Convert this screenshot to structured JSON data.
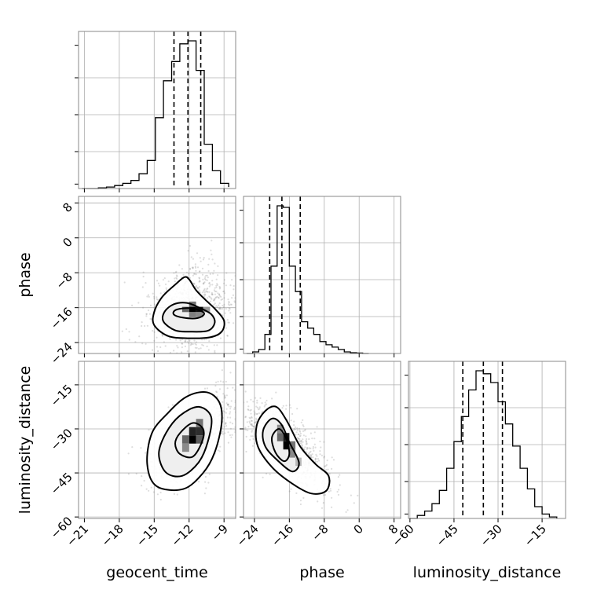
{
  "chart_data": {
    "type": "corner",
    "parameters": [
      "geocent_time",
      "phase",
      "luminosity_distance"
    ],
    "axis_labels": {
      "geocent_time": "geocent_time",
      "phase": "phase",
      "luminosity_distance": "luminosity_distance"
    },
    "ranges": {
      "geocent_time": [
        -21.5,
        -8.0
      ],
      "phase": [
        -26.5,
        9.5
      ],
      "luminosity_distance": [
        -60.5,
        -7.0
      ]
    },
    "ticks": {
      "geocent_time": [
        {
          "v": -21,
          "label": "−21"
        },
        {
          "v": -18,
          "label": "−18"
        },
        {
          "v": -15,
          "label": "−15"
        },
        {
          "v": -12,
          "label": "−12"
        },
        {
          "v": -9,
          "label": "−9"
        }
      ],
      "phase": [
        {
          "v": -24,
          "label": "−24"
        },
        {
          "v": -16,
          "label": "−16"
        },
        {
          "v": -8,
          "label": "−8"
        },
        {
          "v": 0,
          "label": "0"
        },
        {
          "v": 8,
          "label": "8"
        }
      ],
      "luminosity_distance": [
        {
          "v": -60,
          "label": "−60"
        },
        {
          "v": -45,
          "label": "−45"
        },
        {
          "v": -30,
          "label": "−30"
        },
        {
          "v": -15,
          "label": "−15"
        }
      ]
    },
    "histograms": {
      "geocent_time": {
        "edges": [
          -21.2,
          -20.5,
          -19.8,
          -19.1,
          -18.4,
          -17.7,
          -17.0,
          -16.3,
          -15.6,
          -14.9,
          -14.2,
          -13.5,
          -12.8,
          -12.1,
          -11.4,
          -10.7,
          -10.0,
          -9.3,
          -8.6
        ],
        "counts": [
          0.0,
          0.0,
          0.005,
          0.01,
          0.02,
          0.035,
          0.055,
          0.1,
          0.19,
          0.48,
          0.73,
          0.86,
          0.98,
          1.0,
          0.8,
          0.3,
          0.12,
          0.035,
          0.01
        ],
        "quantiles": [
          -13.3,
          -12.1,
          -11.0
        ]
      },
      "phase": {
        "edges": [
          -25.8,
          -24.4,
          -23.0,
          -21.6,
          -20.2,
          -18.8,
          -17.4,
          -16.0,
          -14.6,
          -13.2,
          -11.8,
          -10.4,
          -9.0,
          -7.6,
          -6.2,
          -4.8,
          -3.4,
          -2.0,
          -0.6,
          0.8,
          2.2
        ],
        "counts": [
          0.0,
          0.01,
          0.025,
          0.12,
          0.55,
          0.93,
          0.92,
          0.55,
          0.39,
          0.2,
          0.16,
          0.12,
          0.075,
          0.055,
          0.04,
          0.025,
          0.01,
          0.005,
          0.003,
          0.0,
          0.0
        ],
        "quantiles": [
          -20.5,
          -17.7,
          -13.5
        ]
      },
      "luminosity_distance": {
        "edges": [
          -60.0,
          -57.5,
          -55.0,
          -52.5,
          -50.0,
          -47.5,
          -45.0,
          -42.5,
          -40.0,
          -37.5,
          -35.0,
          -32.5,
          -30.0,
          -27.5,
          -25.0,
          -22.5,
          -20.0,
          -17.5,
          -15.0,
          -12.5,
          -10.0
        ],
        "counts": [
          0.0,
          0.02,
          0.05,
          0.1,
          0.19,
          0.34,
          0.52,
          0.69,
          0.87,
          1.0,
          0.98,
          0.92,
          0.79,
          0.64,
          0.49,
          0.34,
          0.2,
          0.08,
          0.03,
          0.01,
          0.0
        ],
        "quantiles": [
          -42.0,
          -35.0,
          -28.5
        ]
      }
    },
    "pairs": [
      {
        "x": "geocent_time",
        "y": "phase",
        "contours": [
          [
            [
              -13.8,
              -22.5
            ],
            [
              -12.0,
              -23.0
            ],
            [
              -10.2,
              -22.8
            ],
            [
              -9.2,
              -21.5
            ],
            [
              -9.0,
              -19.0
            ],
            [
              -9.7,
              -16.5
            ],
            [
              -10.6,
              -14.2
            ],
            [
              -11.4,
              -12.0
            ],
            [
              -12.0,
              -9.5
            ],
            [
              -12.4,
              -9.0
            ],
            [
              -13.1,
              -10.5
            ],
            [
              -14.3,
              -13.5
            ],
            [
              -15.0,
              -17.0
            ],
            [
              -15.0,
              -20.0
            ]
          ],
          [
            [
              -13.2,
              -21.2
            ],
            [
              -12.0,
              -21.5
            ],
            [
              -10.4,
              -21.3
            ],
            [
              -9.8,
              -19.5
            ],
            [
              -10.1,
              -17.5
            ],
            [
              -11.2,
              -15.9
            ],
            [
              -12.2,
              -14.9
            ],
            [
              -13.3,
              -15.2
            ],
            [
              -14.1,
              -16.9
            ],
            [
              -14.2,
              -19.2
            ]
          ],
          [
            [
              -12.5,
              -18.3
            ],
            [
              -11.3,
              -18.4
            ],
            [
              -10.7,
              -17.4
            ],
            [
              -11.3,
              -16.4
            ],
            [
              -12.3,
              -16.1
            ],
            [
              -13.2,
              -16.6
            ],
            [
              -13.3,
              -17.6
            ]
          ]
        ],
        "density_cells": [
          {
            "x": -12.0,
            "y": -17.0,
            "w": 0.6,
            "h": 1.2,
            "level": 1.0
          },
          {
            "x": -11.4,
            "y": -17.0,
            "w": 0.6,
            "h": 1.2,
            "level": 0.95
          },
          {
            "x": -12.6,
            "y": -17.0,
            "w": 0.6,
            "h": 1.2,
            "level": 0.55
          },
          {
            "x": -12.0,
            "y": -15.8,
            "w": 0.6,
            "h": 1.2,
            "level": 0.5
          },
          {
            "x": -12.0,
            "y": -18.2,
            "w": 0.6,
            "h": 1.2,
            "level": 0.45
          },
          {
            "x": -11.4,
            "y": -18.2,
            "w": 0.6,
            "h": 1.2,
            "level": 0.4
          },
          {
            "x": -10.8,
            "y": -17.0,
            "w": 0.6,
            "h": 1.2,
            "level": 0.35
          }
        ]
      },
      {
        "x": "geocent_time",
        "y": "luminosity_distance",
        "contours": [
          [
            [
              -14.8,
              -49.5
            ],
            [
              -12.5,
              -50.5
            ],
            [
              -10.8,
              -45.0
            ],
            [
              -9.8,
              -38.0
            ],
            [
              -9.2,
              -28.0
            ],
            [
              -9.4,
              -21.0
            ],
            [
              -10.5,
              -17.5
            ],
            [
              -12.2,
              -19.0
            ],
            [
              -13.8,
              -24.5
            ],
            [
              -15.2,
              -31.5
            ],
            [
              -15.6,
              -42.0
            ]
          ],
          [
            [
              -14.0,
              -44.8
            ],
            [
              -12.6,
              -46.0
            ],
            [
              -11.2,
              -41.5
            ],
            [
              -10.4,
              -34.5
            ],
            [
              -10.1,
              -26.0
            ],
            [
              -11.2,
              -22.5
            ],
            [
              -12.8,
              -25.5
            ],
            [
              -14.0,
              -31.5
            ],
            [
              -14.6,
              -38.5
            ]
          ],
          [
            [
              -12.8,
              -38.5
            ],
            [
              -11.7,
              -39.5
            ],
            [
              -10.9,
              -34.5
            ],
            [
              -10.8,
              -30.0
            ],
            [
              -11.7,
              -28.0
            ],
            [
              -12.8,
              -31.5
            ],
            [
              -13.2,
              -35.0
            ]
          ]
        ],
        "density_cells": [
          {
            "x": -12.0,
            "y": -35.0,
            "w": 0.6,
            "h": 2.8,
            "level": 1.0
          },
          {
            "x": -12.0,
            "y": -32.2,
            "w": 0.6,
            "h": 2.8,
            "level": 0.85
          },
          {
            "x": -11.4,
            "y": -32.2,
            "w": 0.6,
            "h": 2.8,
            "level": 0.8
          },
          {
            "x": -12.6,
            "y": -35.0,
            "w": 0.6,
            "h": 2.8,
            "level": 0.55
          },
          {
            "x": -11.4,
            "y": -29.4,
            "w": 0.6,
            "h": 2.8,
            "level": 0.5
          },
          {
            "x": -12.6,
            "y": -37.8,
            "w": 0.6,
            "h": 2.8,
            "level": 0.4
          },
          {
            "x": -11.4,
            "y": -35.0,
            "w": 0.6,
            "h": 2.8,
            "level": 0.6
          }
        ]
      },
      {
        "x": "phase",
        "y": "luminosity_distance",
        "contours": [
          [
            [
              -23.5,
              -29.0
            ],
            [
              -21.6,
              -24.0
            ],
            [
              -19.0,
              -22.5
            ],
            [
              -16.5,
              -27.5
            ],
            [
              -13.5,
              -36.0
            ],
            [
              -10.0,
              -42.0
            ],
            [
              -7.0,
              -46.0
            ],
            [
              -7.5,
              -51.0
            ],
            [
              -11.0,
              -52.0
            ],
            [
              -15.5,
              -48.5
            ],
            [
              -20.0,
              -43.0
            ],
            [
              -23.2,
              -36.0
            ]
          ],
          [
            [
              -22.0,
              -30.5
            ],
            [
              -20.0,
              -26.5
            ],
            [
              -17.8,
              -28.5
            ],
            [
              -16.0,
              -34.5
            ],
            [
              -13.8,
              -41.5
            ],
            [
              -15.3,
              -44.5
            ],
            [
              -18.5,
              -41.0
            ],
            [
              -21.5,
              -36.0
            ]
          ],
          [
            [
              -20.0,
              -33.0
            ],
            [
              -18.4,
              -30.0
            ],
            [
              -16.8,
              -33.0
            ],
            [
              -16.0,
              -38.5
            ],
            [
              -17.2,
              -41.0
            ],
            [
              -19.2,
              -38.0
            ]
          ]
        ],
        "density_cells": [
          {
            "x": -17.4,
            "y": -37.0,
            "w": 1.4,
            "h": 2.8,
            "level": 1.0
          },
          {
            "x": -17.4,
            "y": -34.2,
            "w": 1.4,
            "h": 2.8,
            "level": 0.9
          },
          {
            "x": -18.8,
            "y": -34.2,
            "w": 1.4,
            "h": 2.8,
            "level": 0.55
          },
          {
            "x": -16.0,
            "y": -37.0,
            "w": 1.4,
            "h": 2.8,
            "level": 0.5
          },
          {
            "x": -18.8,
            "y": -31.4,
            "w": 1.4,
            "h": 2.8,
            "level": 0.4
          },
          {
            "x": -16.0,
            "y": -39.8,
            "w": 1.4,
            "h": 2.8,
            "level": 0.4
          },
          {
            "x": -14.6,
            "y": -42.6,
            "w": 1.4,
            "h": 2.8,
            "level": 0.2
          }
        ]
      }
    ]
  }
}
